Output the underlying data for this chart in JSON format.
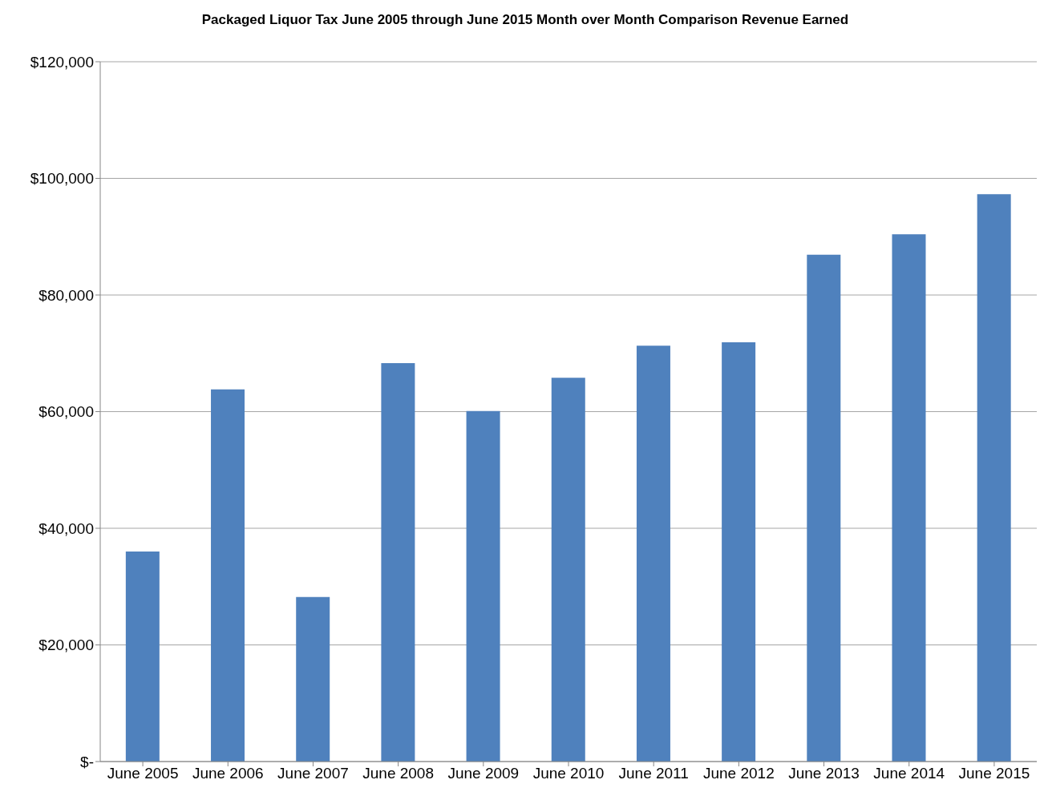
{
  "chart_data": {
    "type": "bar",
    "title": "Packaged Liquor Tax June 2005 through June 2015 Month over Month Comparison Revenue Earned",
    "categories": [
      "June 2005",
      "June 2006",
      "June 2007",
      "June 2008",
      "June 2009",
      "June 2010",
      "June 2011",
      "June 2012",
      "June 2013",
      "June 2014",
      "June 2015"
    ],
    "values": [
      36000,
      63800,
      28200,
      68300,
      60100,
      65800,
      71300,
      71900,
      86900,
      90400,
      97300
    ],
    "color": "#4f81bd",
    "ylim": [
      0,
      120000
    ],
    "yticks": [
      {
        "value": 0,
        "label": "$-"
      },
      {
        "value": 20000,
        "label": "$20,000"
      },
      {
        "value": 40000,
        "label": "$40,000"
      },
      {
        "value": 60000,
        "label": "$60,000"
      },
      {
        "value": 80000,
        "label": "$80,000"
      },
      {
        "value": 100000,
        "label": "$100,000"
      },
      {
        "value": 120000,
        "label": "$120,000"
      }
    ],
    "grid": "y"
  }
}
